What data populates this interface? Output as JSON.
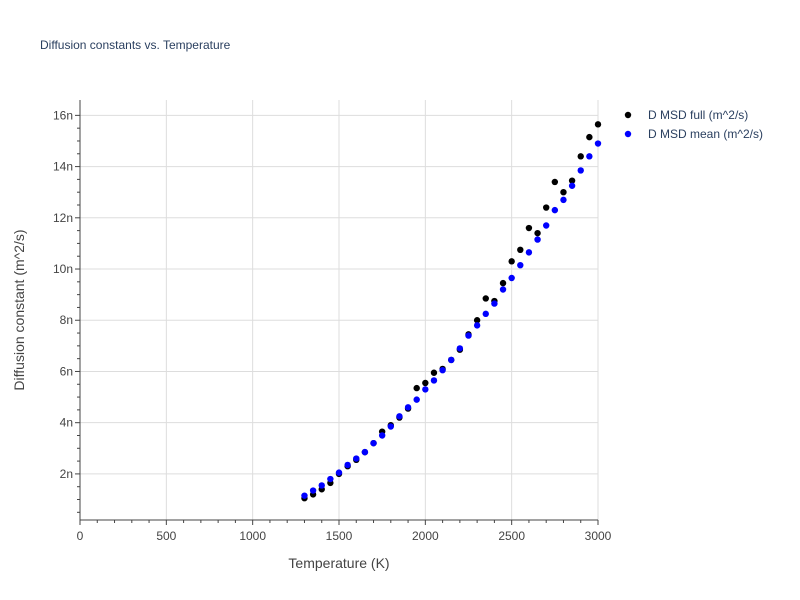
{
  "chart_data": {
    "type": "scatter",
    "title": "Diffusion constants vs. Temperature",
    "xlabel": "Temperature (K)",
    "ylabel": "Diffusion constant (m^2/s)",
    "xlim": [
      0,
      3000
    ],
    "ylim": [
      0.2,
      16.6
    ],
    "x_ticks": [
      0,
      500,
      1000,
      1500,
      2000,
      2500,
      3000
    ],
    "x_tick_labels": [
      "0",
      "500",
      "1000",
      "1500",
      "2000",
      "2500",
      "3000"
    ],
    "y_ticks": [
      2,
      4,
      6,
      8,
      10,
      12,
      14,
      16
    ],
    "y_tick_labels": [
      "2n",
      "4n",
      "6n",
      "8n",
      "10n",
      "12n",
      "14n",
      "16n"
    ],
    "grid": true,
    "legend_position": "top-right outside",
    "series": [
      {
        "name": "D MSD full (m^2/s)",
        "color": "#000000",
        "x": [
          1300,
          1350,
          1400,
          1450,
          1500,
          1550,
          1600,
          1650,
          1700,
          1750,
          1800,
          1850,
          1900,
          1950,
          2000,
          2050,
          2100,
          2150,
          2200,
          2250,
          2300,
          2350,
          2400,
          2450,
          2500,
          2550,
          2600,
          2650,
          2700,
          2750,
          2800,
          2850,
          2900,
          2950,
          3000
        ],
        "y": [
          1.05,
          1.2,
          1.4,
          1.65,
          2.0,
          2.3,
          2.55,
          2.85,
          3.2,
          3.65,
          3.9,
          4.2,
          4.55,
          5.35,
          5.55,
          5.95,
          6.1,
          6.45,
          6.85,
          7.45,
          8.0,
          8.85,
          8.75,
          9.45,
          10.3,
          10.75,
          11.6,
          11.4,
          12.4,
          13.4,
          13.0,
          13.45,
          14.4,
          15.15,
          15.65
        ]
      },
      {
        "name": "D MSD mean (m^2/s)",
        "color": "#0000ff",
        "x": [
          1300,
          1350,
          1400,
          1450,
          1500,
          1550,
          1600,
          1650,
          1700,
          1750,
          1800,
          1850,
          1900,
          1950,
          2000,
          2050,
          2100,
          2150,
          2200,
          2250,
          2300,
          2350,
          2400,
          2450,
          2500,
          2550,
          2600,
          2650,
          2700,
          2750,
          2800,
          2850,
          2900,
          2950,
          3000
        ],
        "y": [
          1.15,
          1.35,
          1.55,
          1.8,
          2.05,
          2.35,
          2.6,
          2.85,
          3.2,
          3.5,
          3.85,
          4.25,
          4.6,
          4.9,
          5.3,
          5.65,
          6.05,
          6.45,
          6.9,
          7.4,
          7.8,
          8.25,
          8.65,
          9.2,
          9.65,
          10.15,
          10.65,
          11.15,
          11.7,
          12.3,
          12.7,
          13.25,
          13.85,
          14.4,
          14.9
        ]
      }
    ]
  }
}
